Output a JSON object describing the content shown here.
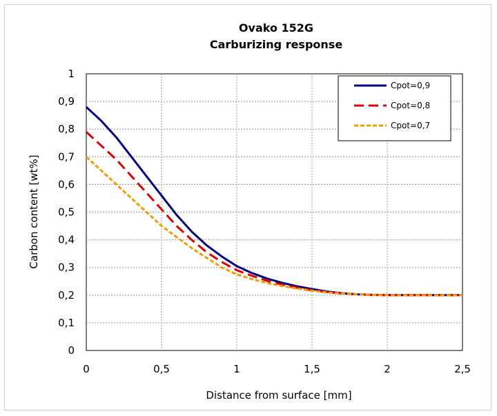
{
  "chart_data": {
    "type": "line",
    "title": "Ovako 152G",
    "subtitle": "Carburizing response",
    "xlabel": "Distance from surface [mm]",
    "ylabel": "Carbon content [wt%]",
    "xlim": [
      0,
      2.5
    ],
    "ylim": [
      0,
      1
    ],
    "x_ticks": [
      "0",
      "0,5",
      "1",
      "1,5",
      "2",
      "2,5"
    ],
    "y_ticks": [
      "0",
      "0,1",
      "0,2",
      "0,3",
      "0,4",
      "0,5",
      "0,6",
      "0,7",
      "0,8",
      "0,9",
      "1"
    ],
    "grid": true,
    "legend_position": "top-right",
    "series": [
      {
        "name": "Cpot=0,9",
        "color": "#000080",
        "dash": "solid",
        "x": [
          0,
          0.1,
          0.2,
          0.3,
          0.4,
          0.5,
          0.6,
          0.7,
          0.8,
          0.9,
          1.0,
          1.1,
          1.2,
          1.3,
          1.4,
          1.5,
          1.6,
          1.7,
          1.8,
          1.9,
          2.0,
          2.2,
          2.5
        ],
        "y": [
          0.88,
          0.83,
          0.77,
          0.7,
          0.63,
          0.56,
          0.49,
          0.43,
          0.38,
          0.34,
          0.305,
          0.28,
          0.26,
          0.245,
          0.232,
          0.222,
          0.213,
          0.207,
          0.203,
          0.201,
          0.2,
          0.2,
          0.2
        ]
      },
      {
        "name": "Cpot=0,8",
        "color": "#e00000",
        "dash": "long-dash",
        "x": [
          0,
          0.1,
          0.2,
          0.3,
          0.4,
          0.5,
          0.6,
          0.7,
          0.8,
          0.9,
          1.0,
          1.1,
          1.2,
          1.3,
          1.4,
          1.5,
          1.6,
          1.7,
          1.8,
          1.9,
          2.0,
          2.2,
          2.5
        ],
        "y": [
          0.79,
          0.74,
          0.69,
          0.63,
          0.57,
          0.51,
          0.45,
          0.4,
          0.355,
          0.32,
          0.29,
          0.27,
          0.252,
          0.238,
          0.227,
          0.218,
          0.211,
          0.206,
          0.203,
          0.201,
          0.2,
          0.2,
          0.2
        ]
      },
      {
        "name": "Cpot=0,7",
        "color": "#f59a00",
        "dash": "short-dash",
        "x": [
          0,
          0.1,
          0.2,
          0.3,
          0.4,
          0.5,
          0.6,
          0.7,
          0.8,
          0.9,
          1.0,
          1.1,
          1.2,
          1.3,
          1.4,
          1.5,
          1.6,
          1.7,
          1.8,
          1.9,
          2.0,
          2.2,
          2.5
        ],
        "y": [
          0.7,
          0.65,
          0.6,
          0.55,
          0.5,
          0.45,
          0.41,
          0.37,
          0.335,
          0.3,
          0.275,
          0.258,
          0.244,
          0.233,
          0.224,
          0.216,
          0.21,
          0.206,
          0.203,
          0.201,
          0.2,
          0.2,
          0.2
        ]
      }
    ]
  }
}
